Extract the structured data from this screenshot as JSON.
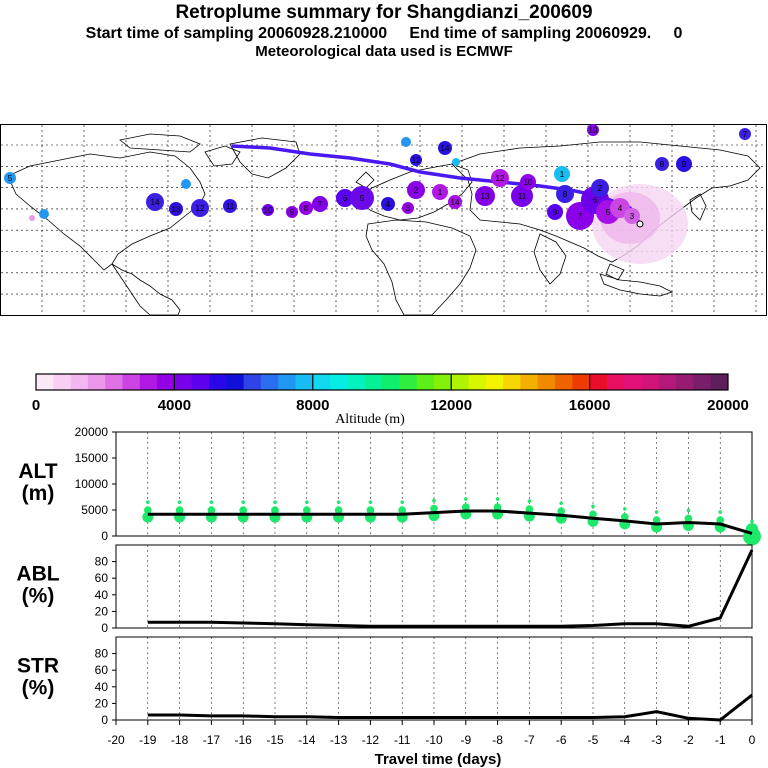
{
  "header": {
    "title": "Retroplume summary for Shangdianzi_200609",
    "sampling_line": "Start time of sampling 20060928.210000     End time of sampling 20060929.     0",
    "met_line": "Meteorological data used is ECMWF"
  },
  "colorbar": {
    "label": "Altitude (m)",
    "ticks": [
      "0",
      "4000",
      "8000",
      "12000",
      "16000",
      "20000"
    ],
    "colors": [
      "#fde8f8",
      "#f9d0f4",
      "#f3b6ef",
      "#ec98ea",
      "#e070e6",
      "#cc44e4",
      "#b018e4",
      "#9400e6",
      "#7800ea",
      "#5e00ee",
      "#2a06e8",
      "#1010d8",
      "#2e44e6",
      "#2a6ef0",
      "#2196f2",
      "#18bcf2",
      "#10d8ee",
      "#06eee4",
      "#04f2c0",
      "#06f098",
      "#10ee6e",
      "#30ee40",
      "#5af018",
      "#84f208",
      "#b0f404",
      "#d8f600",
      "#f2f400",
      "#f6d600",
      "#f4b000",
      "#f28a00",
      "#f06400",
      "#ee3c00",
      "#ea0e2a",
      "#e80e60",
      "#e21078",
      "#d2147a",
      "#b41878",
      "#961c72",
      "#7a1e6a",
      "#5e1e5c"
    ]
  },
  "map": {
    "station_name": "Shangdianzi",
    "trajectory_color": "#4a18f0",
    "plume_labels": [
      "14",
      "13",
      "12",
      "11",
      "10",
      "9",
      "8",
      "7",
      "6",
      "5",
      "4",
      "3",
      "2",
      "1"
    ]
  },
  "chart_data": [
    {
      "type": "line",
      "panel": "ALT",
      "ylabel": "ALT\n(m)",
      "ylabel_lines": [
        "ALT",
        "(m)"
      ],
      "ylim": [
        0,
        20000
      ],
      "yticks": [
        "20000",
        "15000",
        "10000",
        "5000",
        "0"
      ],
      "xlim": [
        -20,
        0
      ],
      "x": [
        -19,
        -18,
        -17,
        -16,
        -15,
        -14,
        -13,
        -12,
        -11,
        -10,
        -9,
        -8,
        -7,
        -6,
        -5,
        -4,
        -3,
        -2,
        -1,
        0
      ],
      "series": [
        {
          "name": "mean altitude",
          "color": "#000000",
          "values": [
            4200,
            4200,
            4200,
            4200,
            4200,
            4200,
            4200,
            4200,
            4200,
            4500,
            4800,
            4800,
            4400,
            4000,
            3400,
            2900,
            2300,
            2600,
            2300,
            500
          ]
        }
      ],
      "scatter_color": "#1ee86a"
    },
    {
      "type": "line",
      "panel": "ABL",
      "ylabel": "ABL\n(%)",
      "ylabel_lines": [
        "ABL",
        "(%)"
      ],
      "ylim": [
        0,
        100
      ],
      "yticks": [
        "80",
        "60",
        "40",
        "20",
        "0"
      ],
      "xlim": [
        -20,
        0
      ],
      "x": [
        -19,
        -18,
        -17,
        -16,
        -15,
        -14,
        -13,
        -12,
        -11,
        -10,
        -9,
        -8,
        -7,
        -6,
        -5,
        -4,
        -3,
        -2,
        -1,
        0
      ],
      "series": [
        {
          "name": "fraction in boundary layer",
          "color": "#000000",
          "values": [
            7,
            7,
            7,
            6,
            5,
            4,
            3,
            2,
            2,
            2,
            2,
            2,
            2,
            2,
            3,
            5,
            5,
            2,
            12,
            94
          ]
        }
      ]
    },
    {
      "type": "line",
      "panel": "STR",
      "ylabel": "STR\n(%)",
      "ylabel_lines": [
        "STR",
        "(%)"
      ],
      "ylim": [
        0,
        100
      ],
      "yticks": [
        "80",
        "60",
        "40",
        "20",
        "0"
      ],
      "xlim": [
        -20,
        0
      ],
      "xlabel": "Travel time (days)",
      "xticks": [
        "-20",
        "-19",
        "-18",
        "-17",
        "-16",
        "-15",
        "-14",
        "-13",
        "-12",
        "-11",
        "-10",
        "-9",
        "-8",
        "-7",
        "-6",
        "-5",
        "-4",
        "-3",
        "-2",
        "-1",
        "0"
      ],
      "x": [
        -19,
        -18,
        -17,
        -16,
        -15,
        -14,
        -13,
        -12,
        -11,
        -10,
        -9,
        -8,
        -7,
        -6,
        -5,
        -4,
        -3,
        -2,
        -1,
        0
      ],
      "series": [
        {
          "name": "fraction in stratosphere",
          "color": "#000000",
          "values": [
            6,
            6,
            5,
            5,
            4,
            4,
            3,
            3,
            3,
            3,
            3,
            3,
            3,
            3,
            3,
            4,
            10,
            2,
            0,
            30
          ]
        }
      ]
    }
  ]
}
